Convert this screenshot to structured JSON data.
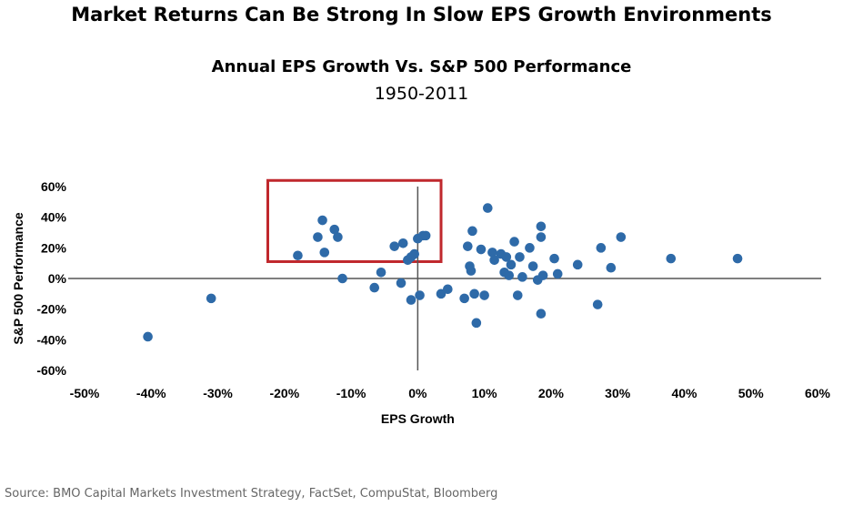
{
  "header": {
    "title": "Market Returns Can Be Strong In Slow EPS Growth Environments",
    "period": "1950-2011"
  },
  "footer": {
    "source": "Source: BMO Capital Markets Investment Strategy, FactSet, CompuStat, Bloomberg"
  },
  "colors": {
    "point": "#2e6aa8",
    "axis": "#555555",
    "highlight_box": "#c0282d"
  },
  "chart_data": {
    "type": "scatter",
    "title": "Annual EPS Growth Vs. S&P 500 Performance",
    "xlabel": "EPS Growth",
    "ylabel": "S&P 500 Performance",
    "xlim": [
      -50,
      60
    ],
    "ylim": [
      -60,
      60
    ],
    "x_ticks": [
      "-50%",
      "-40%",
      "-30%",
      "-20%",
      "-10%",
      "0%",
      "10%",
      "20%",
      "30%",
      "40%",
      "50%",
      "60%"
    ],
    "y_ticks": [
      "60%",
      "40%",
      "20%",
      "0%",
      "-20%",
      "-40%",
      "-60%"
    ],
    "grid": false,
    "highlight_region": {
      "x_range": [
        -22.5,
        3.5
      ],
      "y_range": [
        11,
        64
      ]
    },
    "points": [
      {
        "x": -40.5,
        "y": -38
      },
      {
        "x": -31,
        "y": -13
      },
      {
        "x": -18,
        "y": 15
      },
      {
        "x": -15,
        "y": 27
      },
      {
        "x": -14.3,
        "y": 38
      },
      {
        "x": -14,
        "y": 17
      },
      {
        "x": -12.5,
        "y": 32
      },
      {
        "x": -12,
        "y": 27
      },
      {
        "x": -11.3,
        "y": 0
      },
      {
        "x": -6.5,
        "y": -6
      },
      {
        "x": -5.5,
        "y": 4
      },
      {
        "x": -3.5,
        "y": 21
      },
      {
        "x": -2.5,
        "y": -3
      },
      {
        "x": -2.2,
        "y": 23
      },
      {
        "x": -1.5,
        "y": 12
      },
      {
        "x": -1,
        "y": 14
      },
      {
        "x": -1,
        "y": -14
      },
      {
        "x": -0.5,
        "y": 16
      },
      {
        "x": 0,
        "y": 26
      },
      {
        "x": 0.3,
        "y": -11
      },
      {
        "x": 0.8,
        "y": 28
      },
      {
        "x": 1.2,
        "y": 28
      },
      {
        "x": 3.5,
        "y": -10
      },
      {
        "x": 4.5,
        "y": -7
      },
      {
        "x": 7,
        "y": -13
      },
      {
        "x": 7.5,
        "y": 21
      },
      {
        "x": 7.8,
        "y": 8
      },
      {
        "x": 8,
        "y": 5
      },
      {
        "x": 8.2,
        "y": 31
      },
      {
        "x": 8.5,
        "y": -10
      },
      {
        "x": 8.8,
        "y": -29
      },
      {
        "x": 9.5,
        "y": 19
      },
      {
        "x": 10,
        "y": -11
      },
      {
        "x": 10.5,
        "y": 46
      },
      {
        "x": 11.2,
        "y": 17
      },
      {
        "x": 11.5,
        "y": 12
      },
      {
        "x": 12.5,
        "y": 16
      },
      {
        "x": 13,
        "y": 4
      },
      {
        "x": 13.3,
        "y": 14
      },
      {
        "x": 13.7,
        "y": 2
      },
      {
        "x": 14,
        "y": 9
      },
      {
        "x": 14.5,
        "y": 24
      },
      {
        "x": 15,
        "y": -11
      },
      {
        "x": 15.3,
        "y": 14
      },
      {
        "x": 15.7,
        "y": 1
      },
      {
        "x": 16.8,
        "y": 20
      },
      {
        "x": 17.3,
        "y": 8
      },
      {
        "x": 18,
        "y": -1
      },
      {
        "x": 18.5,
        "y": -23
      },
      {
        "x": 18.5,
        "y": 34
      },
      {
        "x": 18.5,
        "y": 27
      },
      {
        "x": 18.8,
        "y": 2
      },
      {
        "x": 20.5,
        "y": 13
      },
      {
        "x": 21,
        "y": 3
      },
      {
        "x": 24,
        "y": 9
      },
      {
        "x": 27,
        "y": -17
      },
      {
        "x": 27.5,
        "y": 20
      },
      {
        "x": 29,
        "y": 7
      },
      {
        "x": 30.5,
        "y": 27
      },
      {
        "x": 38,
        "y": 13
      },
      {
        "x": 48,
        "y": 13
      }
    ]
  }
}
